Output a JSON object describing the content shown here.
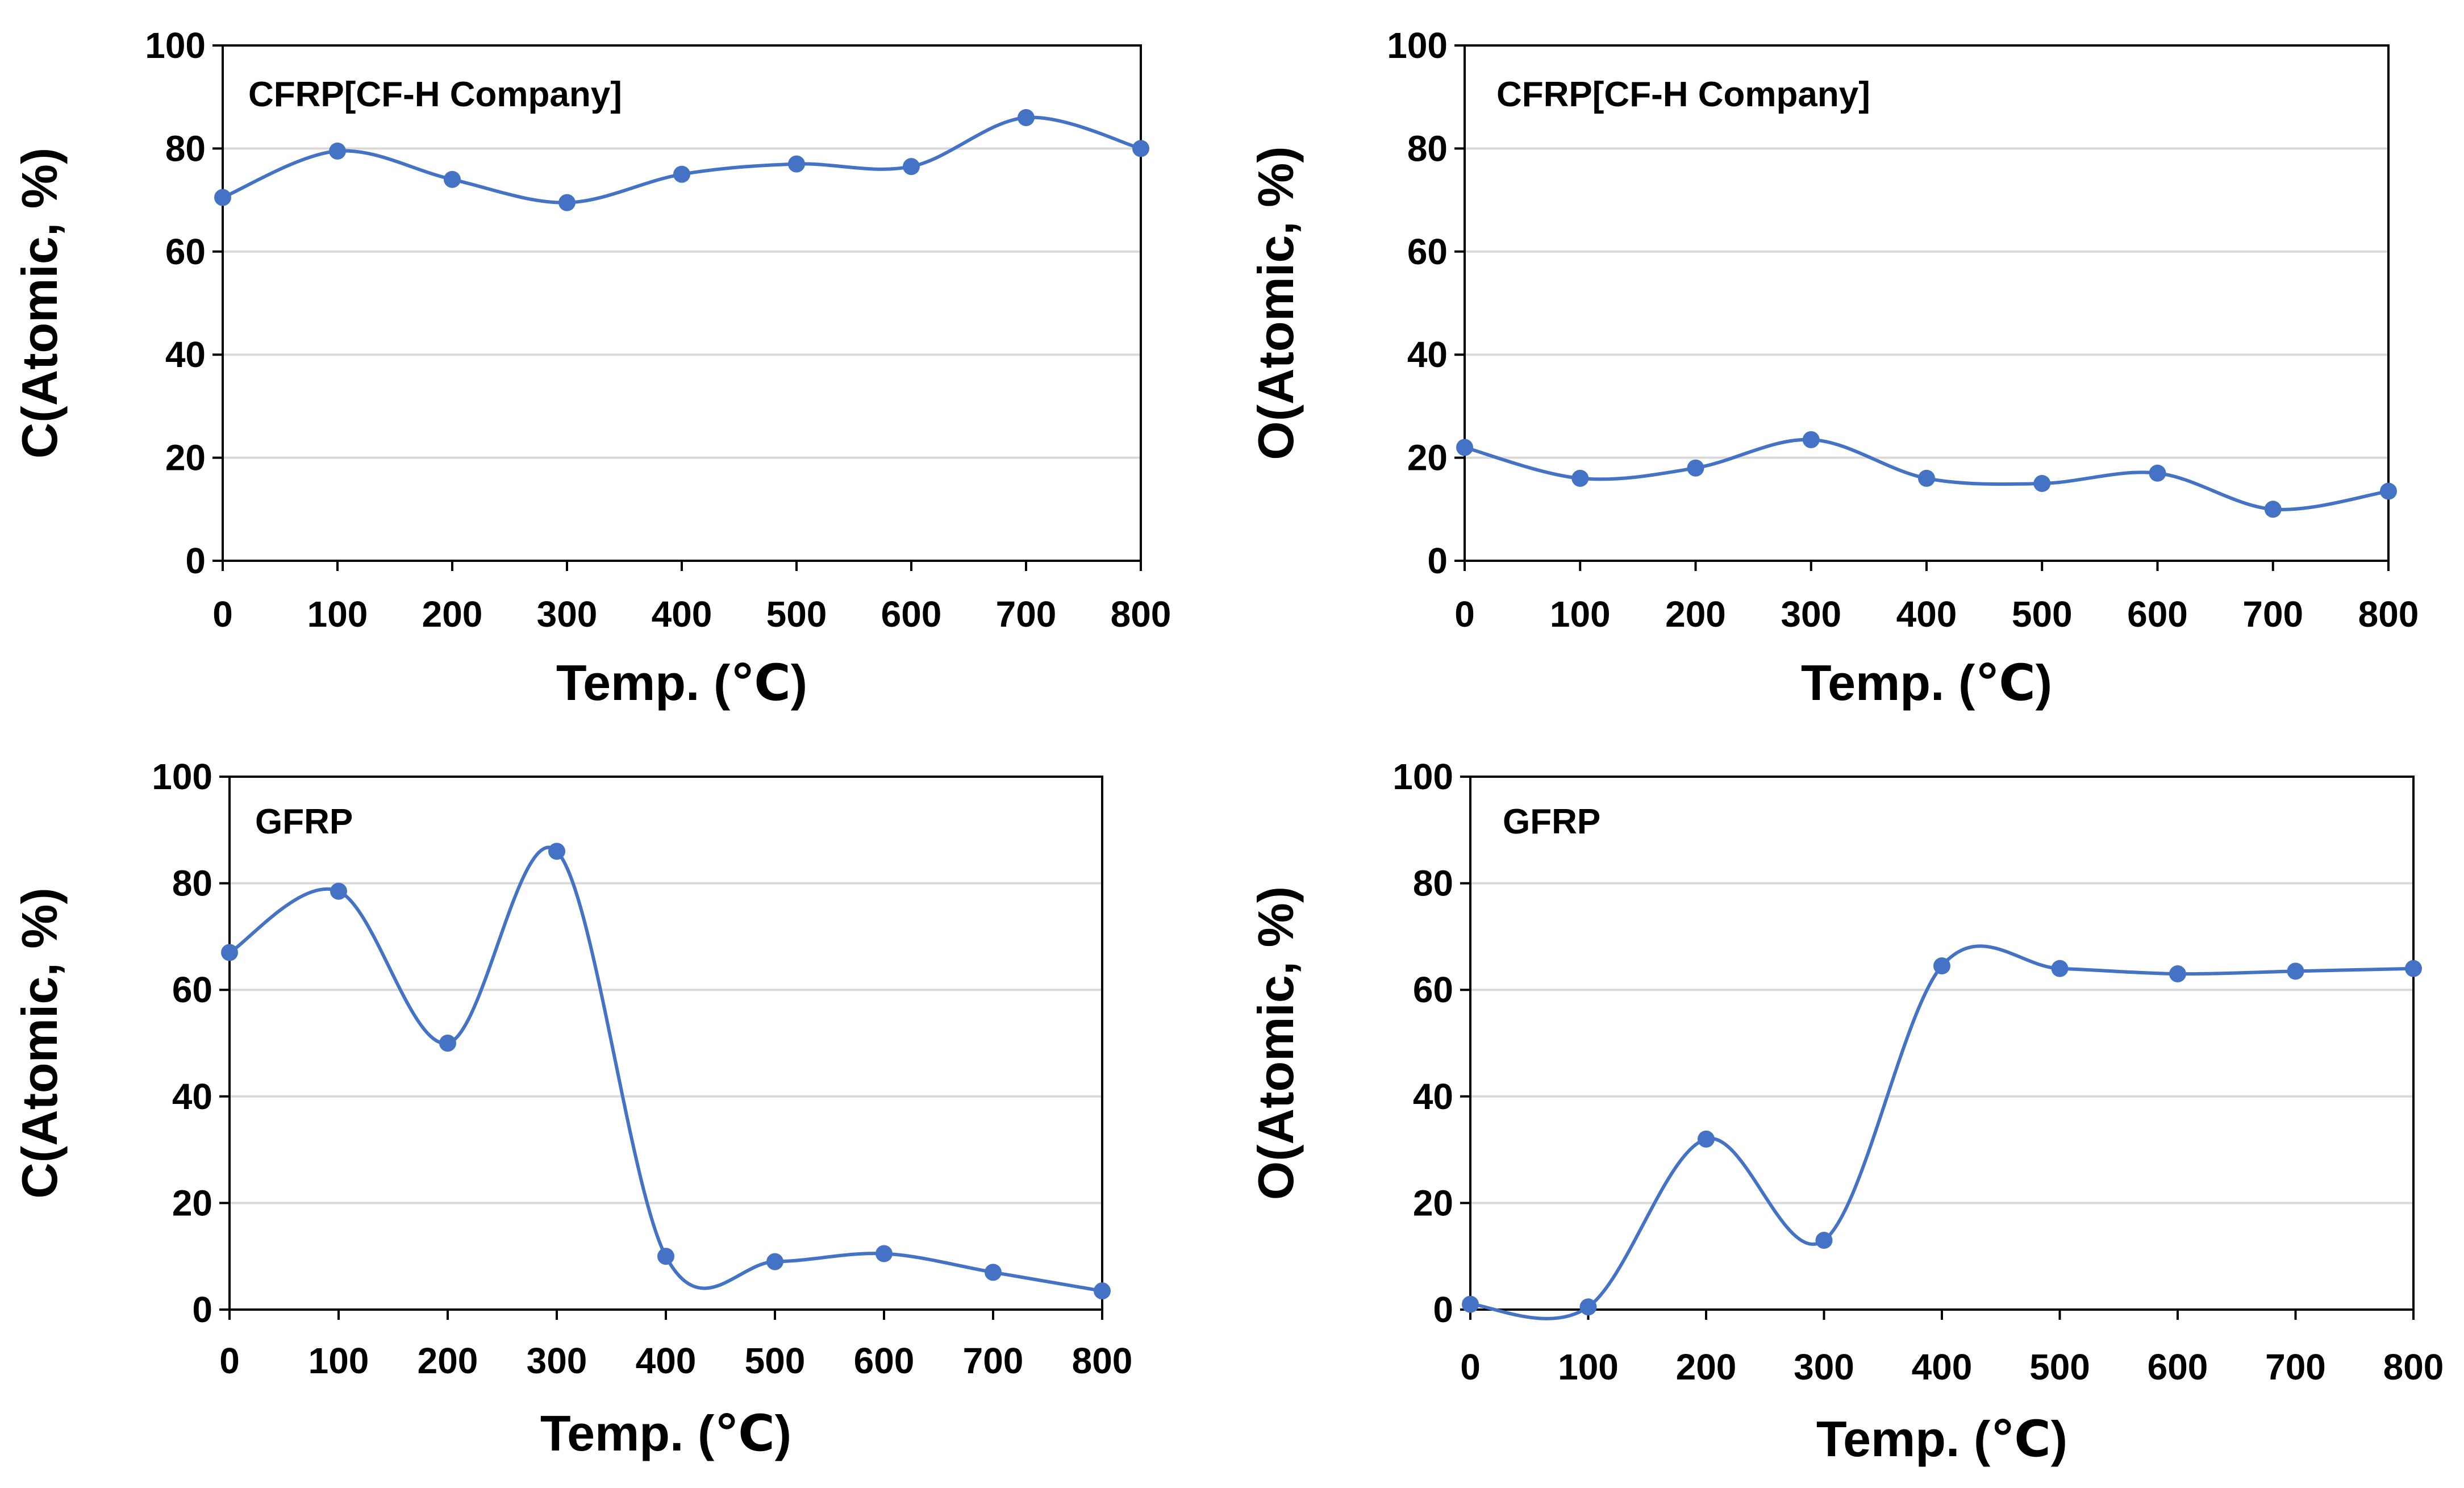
{
  "figure": {
    "panels": [
      {
        "id": "cfrp-c"
      },
      {
        "id": "cfrp-o"
      },
      {
        "id": "gfrp-c"
      },
      {
        "id": "gfrp-o"
      }
    ]
  },
  "style": {
    "line_color": "#4472c4",
    "grid_color": "#d9d9d9",
    "axis_color": "#000000"
  },
  "chart_data": [
    {
      "type": "line",
      "title": "CFRP[CF-H Company]",
      "xlabel": "Temp. (℃)",
      "ylabel": "C(Atomic, %)",
      "x": [
        0,
        100,
        200,
        300,
        400,
        500,
        600,
        700,
        800
      ],
      "x_ticks": [
        "0",
        "100",
        "200",
        "300",
        "400",
        "500",
        "600",
        "700",
        "800"
      ],
      "y": [
        70.5,
        79.5,
        74,
        69.5,
        75,
        77,
        76.5,
        86,
        80
      ],
      "ylim": [
        0,
        100
      ],
      "y_ticks": [
        "0",
        "20",
        "40",
        "60",
        "80",
        "100"
      ],
      "smooth": true
    },
    {
      "type": "line",
      "title": "CFRP[CF-H Company]",
      "xlabel": "Temp. (℃)",
      "ylabel": "O(Atomic, %)",
      "x": [
        0,
        100,
        200,
        300,
        400,
        500,
        600,
        700,
        800
      ],
      "x_ticks": [
        "0",
        "100",
        "200",
        "300",
        "400",
        "500",
        "600",
        "700",
        "800"
      ],
      "y": [
        22,
        16,
        18,
        23.5,
        16,
        15,
        17,
        10,
        13.5
      ],
      "ylim": [
        0,
        100
      ],
      "y_ticks": [
        "0",
        "20",
        "40",
        "60",
        "80",
        "100"
      ],
      "smooth": true
    },
    {
      "type": "line",
      "title": "GFRP",
      "xlabel": "Temp. (℃)",
      "ylabel": "C(Atomic, %)",
      "x": [
        0,
        100,
        200,
        300,
        400,
        500,
        600,
        700,
        800
      ],
      "x_ticks": [
        "0",
        "100",
        "200",
        "300",
        "400",
        "500",
        "600",
        "700",
        "800"
      ],
      "y": [
        67,
        78.5,
        50,
        86,
        10,
        9,
        10.5,
        7,
        3.5
      ],
      "ylim": [
        0,
        100
      ],
      "y_ticks": [
        "0",
        "20",
        "40",
        "60",
        "80",
        "100"
      ],
      "smooth": true
    },
    {
      "type": "line",
      "title": "GFRP",
      "xlabel": "Temp. (℃)",
      "ylabel": "O(Atomic, %)",
      "x": [
        0,
        100,
        200,
        300,
        400,
        500,
        600,
        700,
        800
      ],
      "x_ticks": [
        "0",
        "100",
        "200",
        "300",
        "400",
        "500",
        "600",
        "700",
        "800"
      ],
      "y": [
        1,
        0.5,
        32,
        13,
        64.5,
        64,
        63,
        63.5,
        64
      ],
      "ylim": [
        0,
        100
      ],
      "y_ticks": [
        "0",
        "20",
        "40",
        "60",
        "80",
        "100"
      ],
      "smooth": true
    }
  ]
}
